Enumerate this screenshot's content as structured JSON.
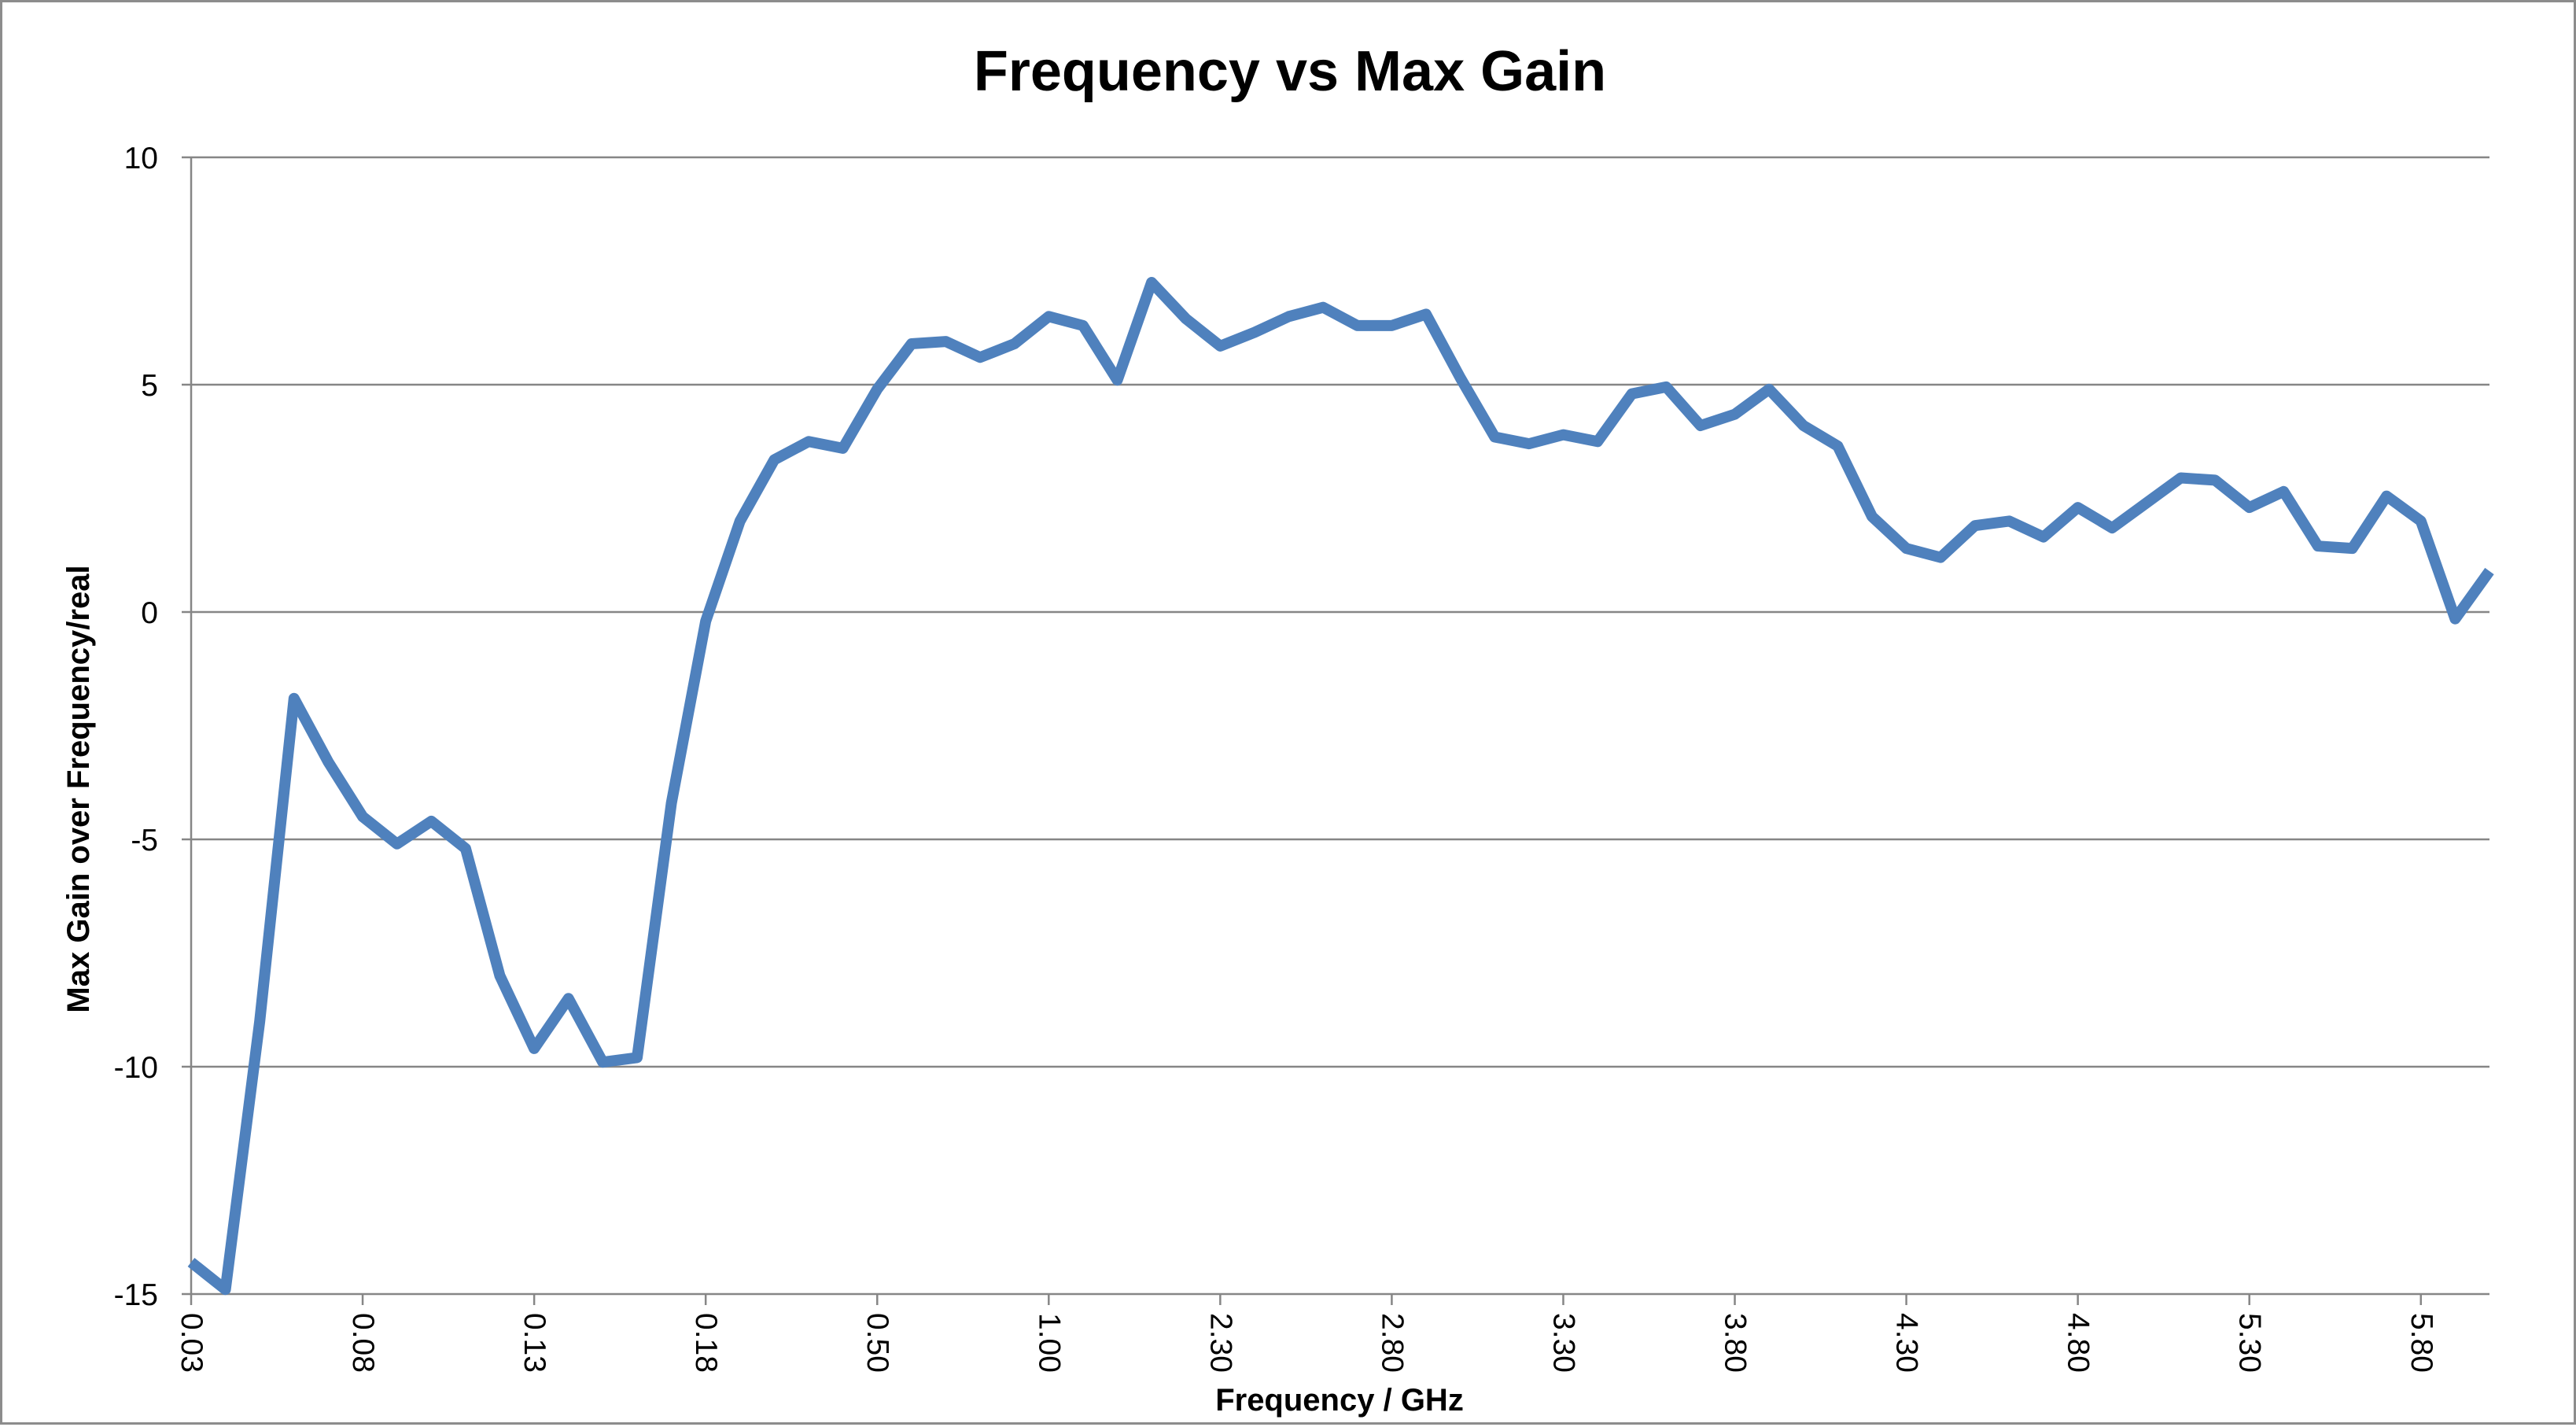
{
  "chart_data": {
    "type": "line",
    "title": "Frequency vs Max Gain",
    "xlabel": "Frequency / GHz",
    "ylabel": "Max Gain over Frequency/real",
    "ylim": [
      -15,
      10
    ],
    "yticks": [
      -15,
      -10,
      -5,
      0,
      5,
      10
    ],
    "grid": "horizontal",
    "legend": "none",
    "x_tick_labels": [
      "0.03",
      "0.08",
      "0.13",
      "0.18",
      "0.50",
      "1.00",
      "2.30",
      "2.80",
      "3.30",
      "3.80",
      "4.30",
      "4.80",
      "5.30",
      "5.80"
    ],
    "x_tick_every": 5,
    "line_color": "#4f81bd",
    "series": [
      {
        "values": [
          -14.3,
          -14.9,
          -9.0,
          -1.9,
          -3.3,
          -4.5,
          -5.1,
          -4.6,
          -5.2,
          -8.0,
          -9.6,
          -8.5,
          -9.9,
          -9.8,
          -4.2,
          -0.2,
          2.0,
          3.35,
          3.75,
          3.6,
          4.9,
          5.9,
          5.95,
          5.6,
          5.9,
          6.5,
          6.3,
          5.1,
          7.25,
          6.45,
          5.85,
          6.15,
          6.5,
          6.7,
          6.3,
          6.3,
          6.55,
          5.15,
          3.85,
          3.7,
          3.9,
          3.75,
          4.8,
          4.95,
          4.1,
          4.35,
          4.9,
          4.1,
          3.65,
          2.1,
          1.4,
          1.2,
          1.9,
          2.0,
          1.65,
          2.3,
          1.85,
          2.4,
          2.95,
          2.9,
          2.3,
          2.65,
          1.45,
          1.4,
          2.55,
          2.0,
          -0.15,
          0.9
        ]
      }
    ]
  }
}
